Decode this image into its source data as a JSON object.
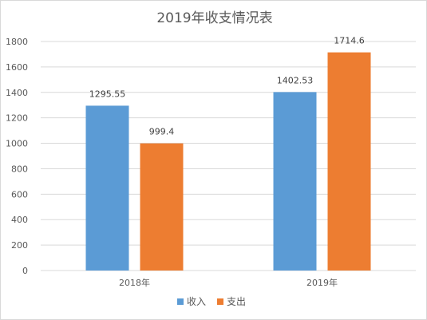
{
  "chart_data": {
    "type": "bar",
    "title": "2019年收支情况表",
    "categories": [
      "2018年",
      "2019年"
    ],
    "series": [
      {
        "name": "收入",
        "color": "#5B9BD5",
        "values": [
          1295.55,
          1402.53
        ],
        "labels": [
          "1295.55",
          "1402.53"
        ]
      },
      {
        "name": "支出",
        "color": "#ED7D31",
        "values": [
          999.4,
          1714.6
        ],
        "labels": [
          "999.4",
          "1714.6"
        ]
      }
    ],
    "ylim": [
      0,
      1800
    ],
    "yticks": [
      0,
      200,
      400,
      600,
      800,
      1000,
      1200,
      1400,
      1600,
      1800
    ],
    "grid": true,
    "legend_position": "bottom"
  }
}
